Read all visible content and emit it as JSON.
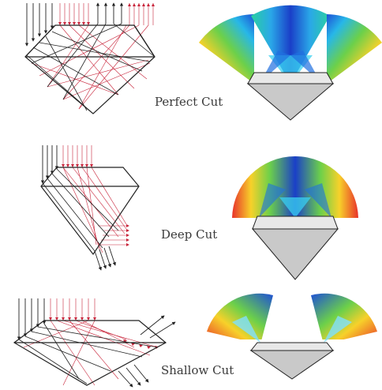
{
  "labels": {
    "perfect": "Perfect Cut",
    "deep": "Deep Cut",
    "shallow": "Shallow Cut"
  },
  "colors": {
    "incident_ray": "#222222",
    "refracted_ray": "#c8243a",
    "gem_fill": "#c9c9c9",
    "gem_stroke": "#222222",
    "label_text": "#3a3a3a"
  }
}
